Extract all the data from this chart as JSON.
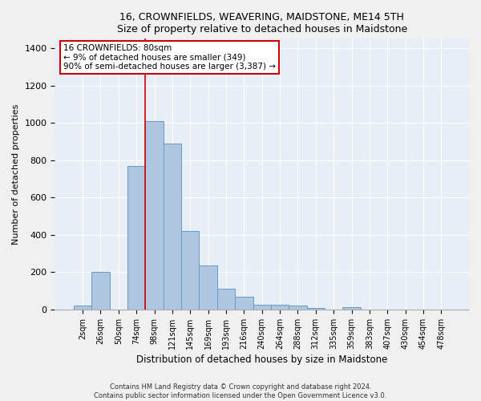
{
  "title": "16, CROWNFIELDS, WEAVERING, MAIDSTONE, ME14 5TH",
  "subtitle": "Size of property relative to detached houses in Maidstone",
  "xlabel": "Distribution of detached houses by size in Maidstone",
  "ylabel": "Number of detached properties",
  "footer_line1": "Contains HM Land Registry data © Crown copyright and database right 2024.",
  "footer_line2": "Contains public sector information licensed under the Open Government Licence v3.0.",
  "categories": [
    "2sqm",
    "26sqm",
    "50sqm",
    "74sqm",
    "98sqm",
    "121sqm",
    "145sqm",
    "169sqm",
    "193sqm",
    "216sqm",
    "240sqm",
    "264sqm",
    "288sqm",
    "312sqm",
    "335sqm",
    "359sqm",
    "383sqm",
    "407sqm",
    "430sqm",
    "454sqm",
    "478sqm"
  ],
  "values": [
    20,
    200,
    0,
    770,
    1010,
    890,
    420,
    235,
    110,
    70,
    25,
    25,
    20,
    8,
    0,
    15,
    0,
    0,
    0,
    0,
    0
  ],
  "bar_color": "#aec6df",
  "bar_edge_color": "#6699cc",
  "background_color": "#e8eef5",
  "grid_color": "#ffffff",
  "property_line_x": 3.5,
  "annotation_text": "16 CROWNFIELDS: 80sqm\n← 9% of detached houses are smaller (349)\n90% of semi-detached houses are larger (3,387) →",
  "annotation_box_color": "#ffffff",
  "annotation_box_edge": "#cc0000",
  "vline_color": "#cc0000",
  "ylim": [
    0,
    1450
  ],
  "yticks": [
    0,
    200,
    400,
    600,
    800,
    1000,
    1200,
    1400
  ]
}
